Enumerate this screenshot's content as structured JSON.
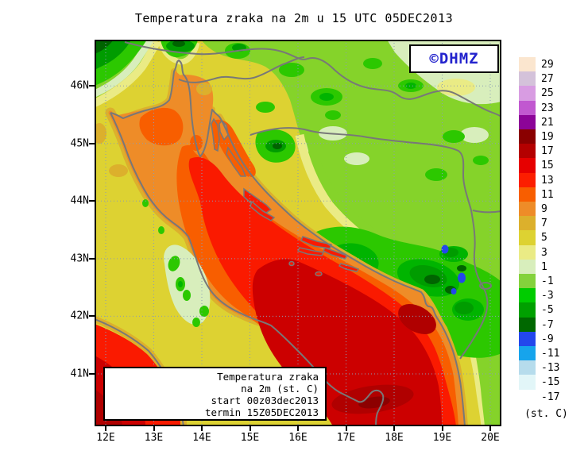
{
  "title": "Temperatura zraka na 2m u 15 UTC 05DEC2013",
  "logo": {
    "label": "©DHMZ",
    "color": "#2323cd"
  },
  "info_box": {
    "lines": [
      "Temperatura zraka",
      "na 2m (st. C)",
      "start 00z03dec2013",
      "termin 15Z05DEC2013"
    ]
  },
  "legend": {
    "unit": "(st. C)",
    "entries": [
      {
        "label": "29",
        "color": "#fbe6cf"
      },
      {
        "label": "27",
        "color": "#d4c2da"
      },
      {
        "label": "25",
        "color": "#d89ce2"
      },
      {
        "label": "23",
        "color": "#c158d0"
      },
      {
        "label": "21",
        "color": "#8c0498"
      },
      {
        "label": "19",
        "color": "#8a0000"
      },
      {
        "label": "17",
        "color": "#b40000"
      },
      {
        "label": "15",
        "color": "#e60000"
      },
      {
        "label": "13",
        "color": "#fc1e00"
      },
      {
        "label": "11",
        "color": "#f85e00"
      },
      {
        "label": "9",
        "color": "#ee8c28"
      },
      {
        "label": "7",
        "color": "#dcb02c"
      },
      {
        "label": "5",
        "color": "#ddd232"
      },
      {
        "label": "3",
        "color": "#eaeb85"
      },
      {
        "label": "1",
        "color": "#d8eebc"
      },
      {
        "label": "-1",
        "color": "#84d23c"
      },
      {
        "label": "-3",
        "color": "#00cc00"
      },
      {
        "label": "-5",
        "color": "#00a000"
      },
      {
        "label": "-7",
        "color": "#006800"
      },
      {
        "label": "-9",
        "color": "#2347ec"
      },
      {
        "label": "-11",
        "color": "#16a4ec"
      },
      {
        "label": "-13",
        "color": "#b6dcec"
      },
      {
        "label": "-15",
        "color": "#e2f6f8"
      },
      {
        "label": "-17",
        "color": "#ffffff"
      }
    ]
  },
  "axes": {
    "x_labels": [
      "12E",
      "13E",
      "14E",
      "15E",
      "16E",
      "17E",
      "18E",
      "19E",
      "20E"
    ],
    "y_labels": [
      "46N",
      "45N",
      "44N",
      "43N",
      "42N",
      "41N"
    ]
  },
  "map": {
    "colors": {
      "grid": "#8c9cb4",
      "coast": "#787878",
      "frame": "#000000"
    }
  }
}
